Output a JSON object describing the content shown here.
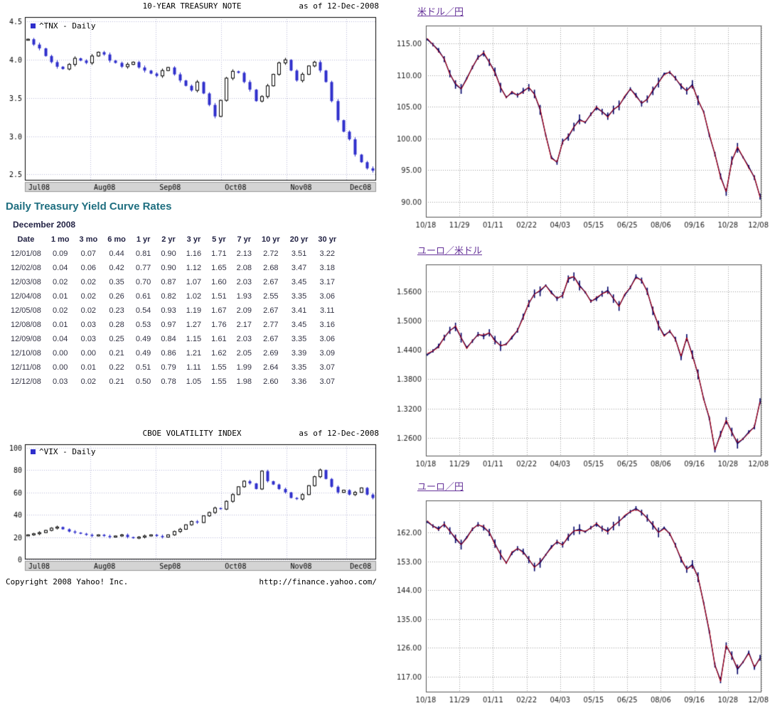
{
  "colors": {
    "heading_teal": "#1f6f80",
    "link_purple": "#663399",
    "candle_blue": "#2f2fcc",
    "fx_navy": "#000066",
    "fx_red": "#cc0000"
  },
  "treasury_section": {
    "heading": "Daily Treasury Yield Curve Rates",
    "month_label": "December 2008",
    "table": {
      "columns": [
        "Date",
        "1 mo",
        "3 mo",
        "6 mo",
        "1 yr",
        "2 yr",
        "3 yr",
        "5 yr",
        "7 yr",
        "10 yr",
        "20 yr",
        "30 yr"
      ],
      "rows": [
        [
          "12/01/08",
          "0.09",
          "0.07",
          "0.44",
          "0.81",
          "0.90",
          "1.16",
          "1.71",
          "2.13",
          "2.72",
          "3.51",
          "3.22"
        ],
        [
          "12/02/08",
          "0.04",
          "0.06",
          "0.42",
          "0.77",
          "0.90",
          "1.12",
          "1.65",
          "2.08",
          "2.68",
          "3.47",
          "3.18"
        ],
        [
          "12/03/08",
          "0.02",
          "0.02",
          "0.35",
          "0.70",
          "0.87",
          "1.07",
          "1.60",
          "2.03",
          "2.67",
          "3.45",
          "3.17"
        ],
        [
          "12/04/08",
          "0.01",
          "0.02",
          "0.26",
          "0.61",
          "0.82",
          "1.02",
          "1.51",
          "1.93",
          "2.55",
          "3.35",
          "3.06"
        ],
        [
          "12/05/08",
          "0.02",
          "0.02",
          "0.23",
          "0.54",
          "0.93",
          "1.19",
          "1.67",
          "2.09",
          "2.67",
          "3.41",
          "3.11"
        ],
        [
          "12/08/08",
          "0.01",
          "0.03",
          "0.28",
          "0.53",
          "0.97",
          "1.27",
          "1.76",
          "2.17",
          "2.77",
          "3.45",
          "3.16"
        ],
        [
          "12/09/08",
          "0.04",
          "0.03",
          "0.25",
          "0.49",
          "0.84",
          "1.15",
          "1.61",
          "2.03",
          "2.67",
          "3.35",
          "3.06"
        ],
        [
          "12/10/08",
          "0.00",
          "0.00",
          "0.21",
          "0.49",
          "0.86",
          "1.21",
          "1.62",
          "2.05",
          "2.69",
          "3.39",
          "3.09"
        ],
        [
          "12/11/08",
          "0.00",
          "0.01",
          "0.22",
          "0.51",
          "0.79",
          "1.11",
          "1.55",
          "1.99",
          "2.64",
          "3.35",
          "3.07"
        ],
        [
          "12/12/08",
          "0.03",
          "0.02",
          "0.21",
          "0.50",
          "0.78",
          "1.05",
          "1.55",
          "1.98",
          "2.60",
          "3.36",
          "3.07"
        ]
      ]
    }
  },
  "footer": {
    "copyright": "Copyright 2008 Yahoo! Inc.",
    "url": "http://finance.yahoo.com/"
  },
  "chart_data": [
    {
      "id": "tnx",
      "type": "candlestick",
      "title": "10-YEAR TREASURY NOTE",
      "as_of": "as of 12-Dec-2008",
      "legend": "^TNX - Daily",
      "x_labels": [
        "Jul08",
        "Aug08",
        "Sep08",
        "Oct08",
        "Nov08",
        "Dec08"
      ],
      "month_starts": [
        0,
        11,
        22,
        33,
        44,
        54
      ],
      "y_ticks": [
        4.5,
        4.0,
        3.5,
        3.0,
        2.5
      ],
      "y_tick_labels": [
        "4.5",
        "4.0",
        "3.5",
        "3.0",
        "2.5"
      ],
      "ylim": [
        2.42,
        4.56
      ],
      "candle_down": "#2f2fcc",
      "candle_up": "#ffffff",
      "values": [
        4.27,
        4.2,
        4.15,
        4.05,
        3.97,
        3.91,
        3.88,
        3.94,
        4.02,
        3.99,
        3.96,
        4.05,
        4.1,
        4.07,
        3.99,
        3.96,
        3.91,
        3.94,
        3.97,
        3.9,
        3.86,
        3.82,
        3.79,
        3.86,
        3.9,
        3.81,
        3.73,
        3.66,
        3.6,
        3.71,
        3.56,
        3.41,
        3.26,
        3.47,
        3.76,
        3.85,
        3.83,
        3.71,
        3.61,
        3.46,
        3.52,
        3.66,
        3.81,
        3.96,
        4.0,
        3.86,
        3.73,
        3.81,
        3.92,
        3.97,
        3.86,
        3.71,
        3.46,
        3.21,
        3.06,
        2.96,
        2.76,
        2.66,
        2.58,
        2.55
      ]
    },
    {
      "id": "vix",
      "type": "candlestick",
      "title": "CBOE VOLATILITY INDEX",
      "as_of": "as of 12-Dec-2008",
      "legend": "^VIX - Daily",
      "x_labels": [
        "Jul08",
        "Aug08",
        "Sep08",
        "Oct08",
        "Nov08",
        "Dec08"
      ],
      "month_starts": [
        0,
        11,
        22,
        33,
        44,
        54
      ],
      "y_ticks": [
        100,
        80,
        60,
        40,
        20,
        0
      ],
      "y_tick_labels": [
        "100",
        "80",
        "60",
        "40",
        "20",
        "0"
      ],
      "ylim": [
        0,
        103
      ],
      "candle_down": "#2f2fcc",
      "candle_up": "#ffffff",
      "values": [
        22,
        23,
        24,
        26,
        28,
        29,
        27,
        25,
        24,
        23,
        22,
        21,
        22,
        21,
        20,
        21,
        22,
        20,
        19,
        20,
        21,
        22,
        21,
        20,
        22,
        25,
        27,
        31,
        34,
        33,
        39,
        42,
        46,
        45,
        52,
        58,
        65,
        70,
        68,
        63,
        79,
        70,
        67,
        63,
        60,
        55,
        54,
        58,
        66,
        74,
        80,
        72,
        65,
        60,
        62,
        58,
        60,
        64,
        58,
        55
      ]
    },
    {
      "id": "usdjpy",
      "type": "fxline",
      "title": "米ドル／円",
      "x_labels": [
        "10/18",
        "11/29",
        "01/11",
        "02/22",
        "04/03",
        "05/15",
        "06/25",
        "08/06",
        "09/16",
        "10/28",
        "12/08"
      ],
      "y_ticks": [
        115,
        110,
        105,
        100,
        95,
        90
      ],
      "y_tick_labels": [
        "115.00",
        "110.00",
        "105.00",
        "100.00",
        "95.00",
        "90.00"
      ],
      "ylim": [
        87.5,
        117.8
      ],
      "series_colors": [
        "#000066",
        "#cc0000"
      ],
      "values": [
        115.6,
        114.8,
        113.9,
        112.5,
        110.2,
        108.5,
        107.8,
        109.5,
        111.2,
        112.8,
        113.4,
        112.0,
        110.5,
        108.0,
        106.5,
        107.2,
        106.8,
        107.5,
        108.0,
        107.0,
        104.5,
        100.5,
        97.0,
        96.2,
        99.5,
        100.2,
        101.8,
        103.0,
        102.5,
        103.8,
        104.8,
        104.2,
        103.5,
        104.5,
        105.2,
        106.5,
        107.8,
        106.8,
        105.5,
        106.2,
        107.5,
        108.8,
        110.2,
        110.4,
        109.5,
        108.2,
        107.5,
        108.5,
        106.0,
        104.2,
        100.5,
        97.5,
        94.0,
        91.5,
        96.5,
        98.5,
        97.0,
        95.5,
        93.8,
        90.8
      ]
    },
    {
      "id": "eurusd",
      "type": "fxline",
      "title": "ユーロ／米ドル",
      "x_labels": [
        "10/18",
        "11/29",
        "01/11",
        "02/22",
        "04/03",
        "05/15",
        "06/25",
        "08/06",
        "09/16",
        "10/28",
        "12/08"
      ],
      "y_ticks": [
        1.56,
        1.5,
        1.44,
        1.38,
        1.32,
        1.26
      ],
      "y_tick_labels": [
        "1.5600",
        "1.5000",
        "1.4400",
        "1.3800",
        "1.3200",
        "1.2600"
      ],
      "ylim": [
        1.222,
        1.615
      ],
      "series_colors": [
        "#000066",
        "#cc0000"
      ],
      "values": [
        1.43,
        1.438,
        1.448,
        1.465,
        1.48,
        1.487,
        1.465,
        1.445,
        1.458,
        1.472,
        1.468,
        1.475,
        1.46,
        1.448,
        1.452,
        1.465,
        1.48,
        1.508,
        1.535,
        1.555,
        1.56,
        1.572,
        1.558,
        1.545,
        1.552,
        1.585,
        1.59,
        1.572,
        1.558,
        1.54,
        1.545,
        1.555,
        1.562,
        1.545,
        1.53,
        1.552,
        1.568,
        1.59,
        1.582,
        1.56,
        1.52,
        1.49,
        1.47,
        1.478,
        1.462,
        1.425,
        1.465,
        1.43,
        1.39,
        1.34,
        1.3,
        1.235,
        1.268,
        1.295,
        1.272,
        1.248,
        1.258,
        1.272,
        1.282,
        1.335
      ]
    },
    {
      "id": "eurjpy",
      "type": "fxline",
      "title": "ユーロ／円",
      "x_labels": [
        "10/18",
        "11/29",
        "01/11",
        "02/22",
        "04/03",
        "05/15",
        "06/25",
        "08/06",
        "09/16",
        "10/28",
        "12/08"
      ],
      "y_ticks": [
        162,
        153,
        144,
        135,
        126,
        117
      ],
      "y_tick_labels": [
        "162.00",
        "153.00",
        "144.00",
        "135.00",
        "126.00",
        "117.00"
      ],
      "ylim": [
        112,
        172
      ],
      "series_colors": [
        "#000066",
        "#cc0000"
      ],
      "values": [
        165.3,
        164.0,
        163.2,
        164.5,
        162.5,
        160.0,
        158.2,
        160.5,
        163.0,
        164.5,
        163.5,
        162.0,
        158.5,
        155.0,
        152.5,
        155.5,
        157.0,
        156.0,
        153.5,
        151.2,
        152.5,
        155.0,
        157.5,
        159.0,
        158.2,
        160.5,
        162.5,
        163.0,
        162.2,
        163.5,
        164.5,
        163.2,
        162.5,
        164.0,
        165.5,
        167.0,
        168.5,
        169.5,
        168.2,
        166.5,
        164.2,
        162.0,
        163.5,
        161.5,
        158.0,
        153.5,
        150.5,
        152.0,
        148.0,
        140.0,
        131.0,
        120.5,
        115.8,
        126.5,
        123.5,
        119.2,
        121.5,
        124.5,
        119.8,
        122.8
      ]
    }
  ]
}
